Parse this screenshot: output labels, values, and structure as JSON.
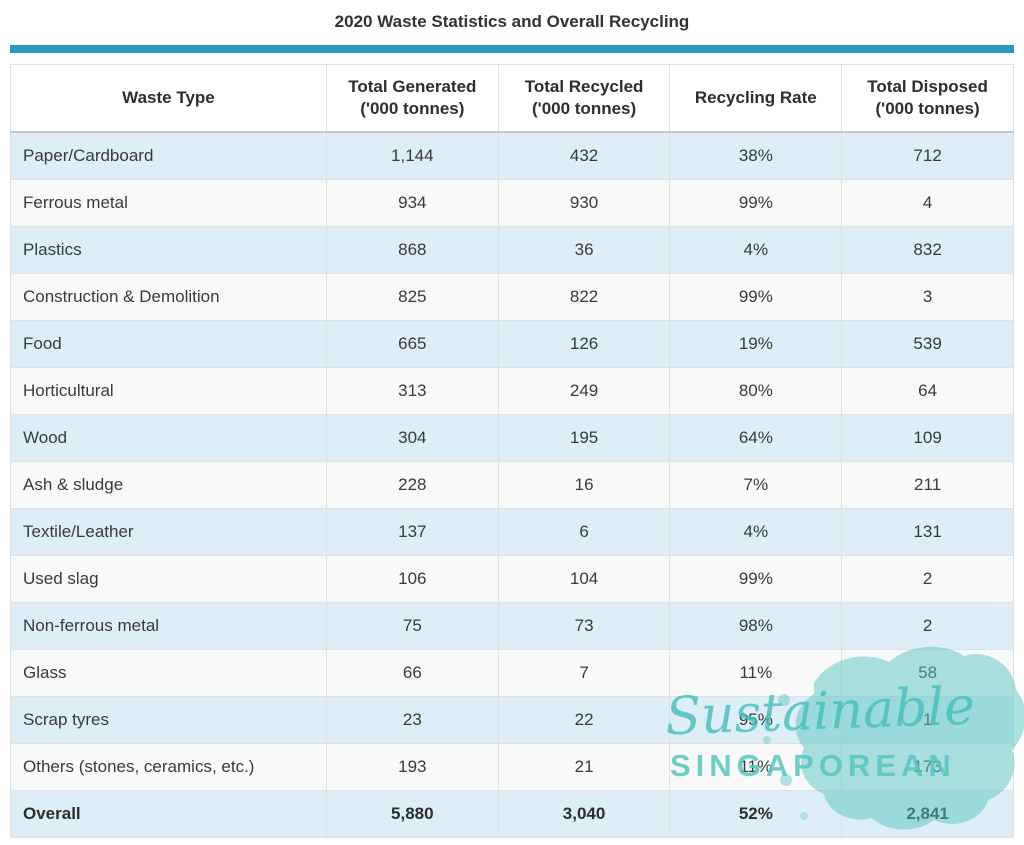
{
  "page": {
    "title": "2020 Waste Statistics and Overall Recycling"
  },
  "colors": {
    "accent_bar": "#2e97bf",
    "row_highlight": "#ddeef7",
    "row_alt": "#f9f9f9",
    "watermark": "#57c6c0",
    "watermark_text": "#45bfb9"
  },
  "table": {
    "columns": [
      {
        "key": "waste-type",
        "label": "Waste Type",
        "sub": ""
      },
      {
        "key": "total-generated",
        "label": "Total Generated",
        "sub": "('000 tonnes)"
      },
      {
        "key": "total-recycled",
        "label": "Total Recycled",
        "sub": "('000 tonnes)"
      },
      {
        "key": "recycling-rate",
        "label": "Recycling Rate",
        "sub": ""
      },
      {
        "key": "total-disposed",
        "label": "Total Disposed",
        "sub": "('000 tonnes)"
      }
    ],
    "rows": [
      {
        "cells": [
          "Paper/Cardboard",
          "1,144",
          "432",
          "38%",
          "712"
        ],
        "bold": false
      },
      {
        "cells": [
          "Ferrous metal",
          "934",
          "930",
          "99%",
          "4"
        ],
        "bold": false
      },
      {
        "cells": [
          "Plastics",
          "868",
          "36",
          "4%",
          "832"
        ],
        "bold": false
      },
      {
        "cells": [
          "Construction & Demolition",
          "825",
          "822",
          "99%",
          "3"
        ],
        "bold": false
      },
      {
        "cells": [
          "Food",
          "665",
          "126",
          "19%",
          "539"
        ],
        "bold": false
      },
      {
        "cells": [
          "Horticultural",
          "313",
          "249",
          "80%",
          "64"
        ],
        "bold": false
      },
      {
        "cells": [
          "Wood",
          "304",
          "195",
          "64%",
          "109"
        ],
        "bold": false
      },
      {
        "cells": [
          "Ash & sludge",
          "228",
          "16",
          "7%",
          "211"
        ],
        "bold": false
      },
      {
        "cells": [
          "Textile/Leather",
          "137",
          "6",
          "4%",
          "131"
        ],
        "bold": false
      },
      {
        "cells": [
          "Used slag",
          "106",
          "104",
          "99%",
          "2"
        ],
        "bold": false
      },
      {
        "cells": [
          "Non-ferrous metal",
          "75",
          "73",
          "98%",
          "2"
        ],
        "bold": false
      },
      {
        "cells": [
          "Glass",
          "66",
          "7",
          "11%",
          "58"
        ],
        "bold": false
      },
      {
        "cells": [
          "Scrap tyres",
          "23",
          "22",
          "95%",
          "1"
        ],
        "bold": false
      },
      {
        "cells": [
          "Others (stones, ceramics, etc.)",
          "193",
          "21",
          "11%",
          "173"
        ],
        "bold": false
      },
      {
        "cells": [
          "Overall",
          "5,880",
          "3,040",
          "52%",
          "2,841"
        ],
        "bold": true
      }
    ]
  },
  "watermark": {
    "script_text": "Sustainable",
    "caps_text": "SINGAPOREAN"
  },
  "chart_data": {
    "type": "table",
    "title": "2020 Waste Statistics and Overall Recycling",
    "columns": [
      "Waste Type",
      "Total Generated ('000 tonnes)",
      "Total Recycled ('000 tonnes)",
      "Recycling Rate",
      "Total Disposed ('000 tonnes)"
    ],
    "rows": [
      [
        "Paper/Cardboard",
        1144,
        432,
        "38%",
        712
      ],
      [
        "Ferrous metal",
        934,
        930,
        "99%",
        4
      ],
      [
        "Plastics",
        868,
        36,
        "4%",
        832
      ],
      [
        "Construction & Demolition",
        825,
        822,
        "99%",
        3
      ],
      [
        "Food",
        665,
        126,
        "19%",
        539
      ],
      [
        "Horticultural",
        313,
        249,
        "80%",
        64
      ],
      [
        "Wood",
        304,
        195,
        "64%",
        109
      ],
      [
        "Ash & sludge",
        228,
        16,
        "7%",
        211
      ],
      [
        "Textile/Leather",
        137,
        6,
        "4%",
        131
      ],
      [
        "Used slag",
        106,
        104,
        "99%",
        2
      ],
      [
        "Non-ferrous metal",
        75,
        73,
        "98%",
        2
      ],
      [
        "Glass",
        66,
        7,
        "11%",
        58
      ],
      [
        "Scrap tyres",
        23,
        22,
        "95%",
        1
      ],
      [
        "Others (stones, ceramics, etc.)",
        193,
        21,
        "11%",
        173
      ],
      [
        "Overall",
        5880,
        3040,
        "52%",
        2841
      ]
    ]
  }
}
